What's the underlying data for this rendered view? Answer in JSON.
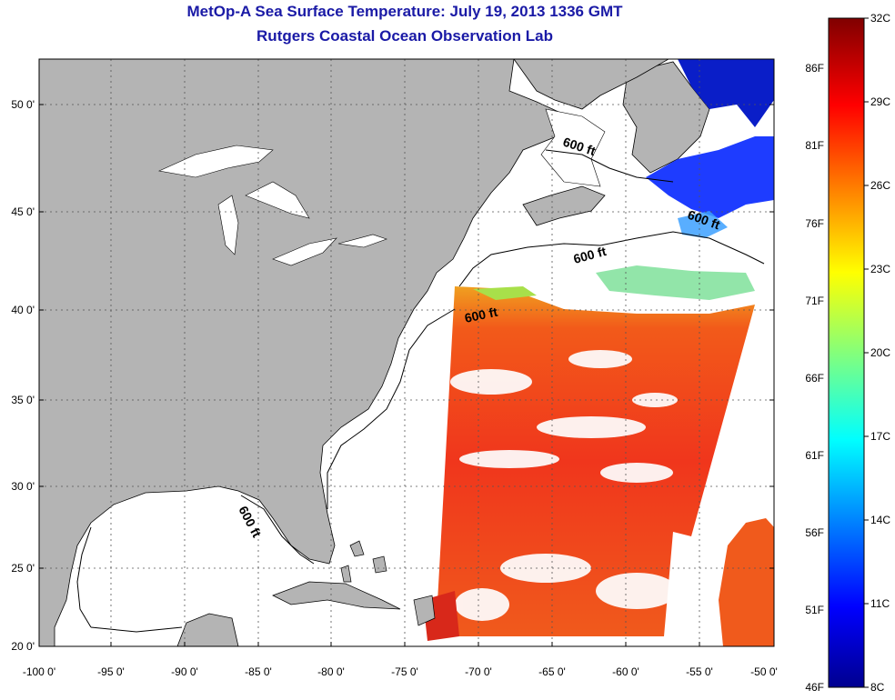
{
  "header": {
    "title": "MetOp-A Sea Surface Temperature:  July 19, 2013 1336 GMT",
    "subtitle": "Rutgers Coastal Ocean Observation Lab"
  },
  "map": {
    "lon_range": [
      -100,
      -50
    ],
    "lat_range": [
      20,
      52.5
    ],
    "lon_ticks": [
      {
        "value": -100,
        "label": "-100 0'"
      },
      {
        "value": -95,
        "label": "-95 0'"
      },
      {
        "value": -90,
        "label": "-90 0'"
      },
      {
        "value": -85,
        "label": "-85 0'"
      },
      {
        "value": -80,
        "label": "-80 0'"
      },
      {
        "value": -75,
        "label": "-75 0'"
      },
      {
        "value": -70,
        "label": "-70 0'"
      },
      {
        "value": -65,
        "label": "-65 0'"
      },
      {
        "value": -60,
        "label": "-60 0'"
      },
      {
        "value": -55,
        "label": "-55 0'"
      },
      {
        "value": -50,
        "label": "-50 0'"
      }
    ],
    "lat_ticks": [
      {
        "value": 20,
        "label": "20 0'"
      },
      {
        "value": 25,
        "label": "25 0'"
      },
      {
        "value": 30,
        "label": "30 0'"
      },
      {
        "value": 35,
        "label": "35 0'"
      },
      {
        "value": 40,
        "label": "40 0'"
      },
      {
        "value": 45,
        "label": "45 0'"
      },
      {
        "value": 50,
        "label": "50 0'"
      }
    ],
    "isobath_labels": [
      "600 ft",
      "600 ft",
      "600 ft",
      "600 ft",
      "600 ft"
    ],
    "colors": {
      "land": "#b4b4b4",
      "ocean_no_data": "#ffffff",
      "grid": "#555555"
    }
  },
  "colorbar": {
    "celsius_labels": [
      "32C",
      "29C",
      "26C",
      "23C",
      "20C",
      "17C",
      "14C",
      "11C",
      "8C"
    ],
    "fahrenheit_labels": [
      "86F",
      "81F",
      "76F",
      "71F",
      "66F",
      "61F",
      "56F",
      "51F",
      "46F"
    ],
    "range_c": [
      8,
      32
    ],
    "colormap": [
      "#00008f",
      "#0000ff",
      "#00ffff",
      "#ffff00",
      "#ff0000",
      "#800000"
    ]
  }
}
